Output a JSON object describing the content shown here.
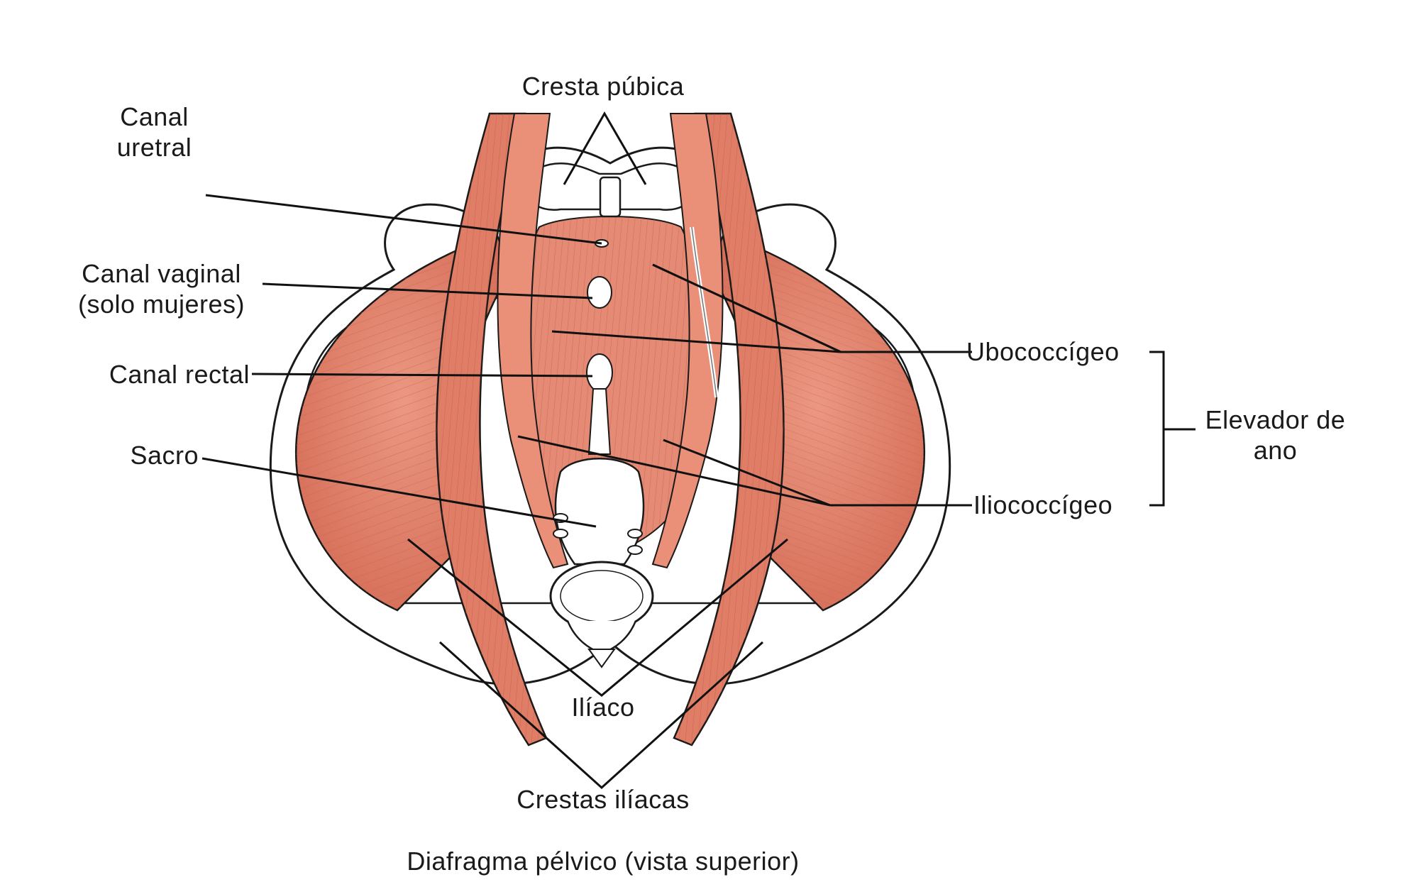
{
  "labels": {
    "cresta_pubica": "Cresta púbica",
    "canal_uretral": "Canal\nuretral",
    "canal_vaginal": "Canal vaginal\n(solo mujeres)",
    "canal_rectal": "Canal rectal",
    "sacro": "Sacro",
    "ubococcigeo": "Ubococcígeo",
    "iliococcigeo": "Iliococcígeo",
    "elevador_de_ano": "Elevador de\nano",
    "iliaco": "Ilíaco",
    "crestas_iliacas": "Crestas ilíacas"
  },
  "caption": "Diafragma pélvico (vista superior)",
  "colors": {
    "muscle": "#e2826c",
    "muscle_dark": "#c9604b",
    "muscle_light": "#f0a690",
    "bone": "#ffffff",
    "outline": "#1a1a1a",
    "leader": "#111111"
  }
}
